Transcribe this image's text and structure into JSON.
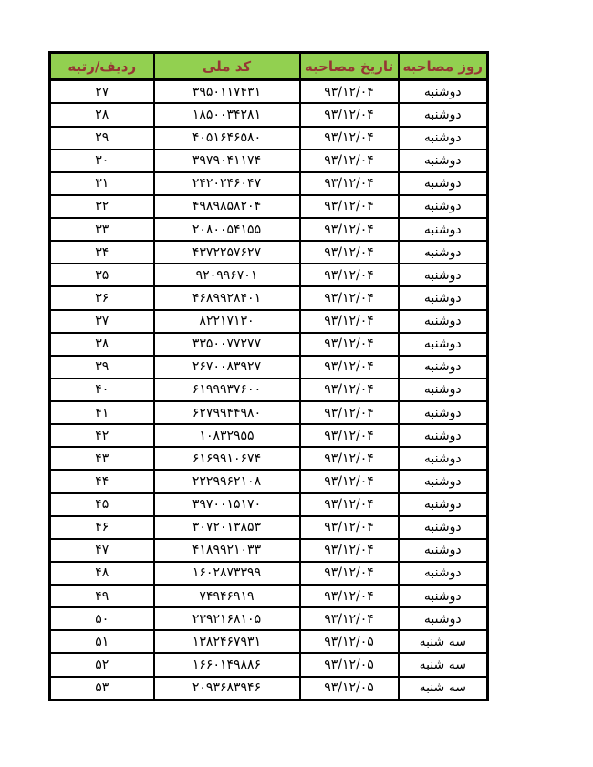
{
  "page": {
    "language": "fa",
    "direction": "rtl",
    "background_color": "#ffffff"
  },
  "table": {
    "colors": {
      "header_bg": "#92d050",
      "header_text": "#963634",
      "border": "#000000",
      "cell_bg": "#ffffff",
      "cell_text": "#000000"
    },
    "columns": [
      {
        "key": "day",
        "label": "روز مصاحبه"
      },
      {
        "key": "date",
        "label": "تاریخ مصاحبه"
      },
      {
        "key": "code",
        "label": "کد ملی"
      },
      {
        "key": "rank",
        "label": "ردیف/رتبه"
      }
    ],
    "rows": [
      {
        "rank": "۲۷",
        "code": "۳۹۵۰۱۱۷۴۳۱",
        "date": "۹۳/۱۲/۰۴",
        "day": "دوشنبه"
      },
      {
        "rank": "۲۸",
        "code": "۱۸۵۰۰۳۴۲۸۱",
        "date": "۹۳/۱۲/۰۴",
        "day": "دوشنبه"
      },
      {
        "rank": "۲۹",
        "code": "۴۰۵۱۶۴۶۵۸۰",
        "date": "۹۳/۱۲/۰۴",
        "day": "دوشنبه"
      },
      {
        "rank": "۳۰",
        "code": "۳۹۷۹۰۴۱۱۷۴",
        "date": "۹۳/۱۲/۰۴",
        "day": "دوشنبه"
      },
      {
        "rank": "۳۱",
        "code": "۲۴۲۰۲۴۶۰۴۷",
        "date": "۹۳/۱۲/۰۴",
        "day": "دوشنبه"
      },
      {
        "rank": "۳۲",
        "code": "۴۹۸۹۸۵۸۲۰۴",
        "date": "۹۳/۱۲/۰۴",
        "day": "دوشنبه"
      },
      {
        "rank": "۳۳",
        "code": "۲۰۸۰۰۵۴۱۵۵",
        "date": "۹۳/۱۲/۰۴",
        "day": "دوشنبه"
      },
      {
        "rank": "۳۴",
        "code": "۴۳۷۲۲۵۷۶۲۷",
        "date": "۹۳/۱۲/۰۴",
        "day": "دوشنبه"
      },
      {
        "rank": "۳۵",
        "code": "۹۲۰۹۹۶۷۰۱",
        "date": "۹۳/۱۲/۰۴",
        "day": "دوشنبه"
      },
      {
        "rank": "۳۶",
        "code": "۴۶۸۹۹۲۸۴۰۱",
        "date": "۹۳/۱۲/۰۴",
        "day": "دوشنبه"
      },
      {
        "rank": "۳۷",
        "code": "۸۲۲۱۷۱۳۰",
        "date": "۹۳/۱۲/۰۴",
        "day": "دوشنبه"
      },
      {
        "rank": "۳۸",
        "code": "۳۳۵۰۰۷۷۲۷۷",
        "date": "۹۳/۱۲/۰۴",
        "day": "دوشنبه"
      },
      {
        "rank": "۳۹",
        "code": "۲۶۷۰۰۸۳۹۲۷",
        "date": "۹۳/۱۲/۰۴",
        "day": "دوشنبه"
      },
      {
        "rank": "۴۰",
        "code": "۶۱۹۹۹۳۷۶۰۰",
        "date": "۹۳/۱۲/۰۴",
        "day": "دوشنبه"
      },
      {
        "rank": "۴۱",
        "code": "۶۲۷۹۹۴۴۹۸۰",
        "date": "۹۳/۱۲/۰۴",
        "day": "دوشنبه"
      },
      {
        "rank": "۴۲",
        "code": "۱۰۸۳۲۹۵۵",
        "date": "۹۳/۱۲/۰۴",
        "day": "دوشنبه"
      },
      {
        "rank": "۴۳",
        "code": "۶۱۶۹۹۱۰۶۷۴",
        "date": "۹۳/۱۲/۰۴",
        "day": "دوشنبه"
      },
      {
        "rank": "۴۴",
        "code": "۲۲۲۹۹۶۲۱۰۸",
        "date": "۹۳/۱۲/۰۴",
        "day": "دوشنبه"
      },
      {
        "rank": "۴۵",
        "code": "۳۹۷۰۰۱۵۱۷۰",
        "date": "۹۳/۱۲/۰۴",
        "day": "دوشنبه"
      },
      {
        "rank": "۴۶",
        "code": "۳۰۷۲۰۱۳۸۵۳",
        "date": "۹۳/۱۲/۰۴",
        "day": "دوشنبه"
      },
      {
        "rank": "۴۷",
        "code": "۴۱۸۹۹۲۱۰۳۳",
        "date": "۹۳/۱۲/۰۴",
        "day": "دوشنبه"
      },
      {
        "rank": "۴۸",
        "code": "۱۶۰۲۸۷۳۳۹۹",
        "date": "۹۳/۱۲/۰۴",
        "day": "دوشنبه"
      },
      {
        "rank": "۴۹",
        "code": "۷۴۹۴۶۹۱۹",
        "date": "۹۳/۱۲/۰۴",
        "day": "دوشنبه"
      },
      {
        "rank": "۵۰",
        "code": "۲۳۹۲۱۶۸۱۰۵",
        "date": "۹۳/۱۲/۰۴",
        "day": "دوشنبه"
      },
      {
        "rank": "۵۱",
        "code": "۱۳۸۲۴۶۷۹۳۱",
        "date": "۹۳/۱۲/۰۵",
        "day": "سه شنبه"
      },
      {
        "rank": "۵۲",
        "code": "۱۶۶۰۱۴۹۸۸۶",
        "date": "۹۳/۱۲/۰۵",
        "day": "سه شنبه"
      },
      {
        "rank": "۵۳",
        "code": "۲۰۹۳۶۸۳۹۴۶",
        "date": "۹۳/۱۲/۰۵",
        "day": "سه شنبه"
      }
    ]
  }
}
